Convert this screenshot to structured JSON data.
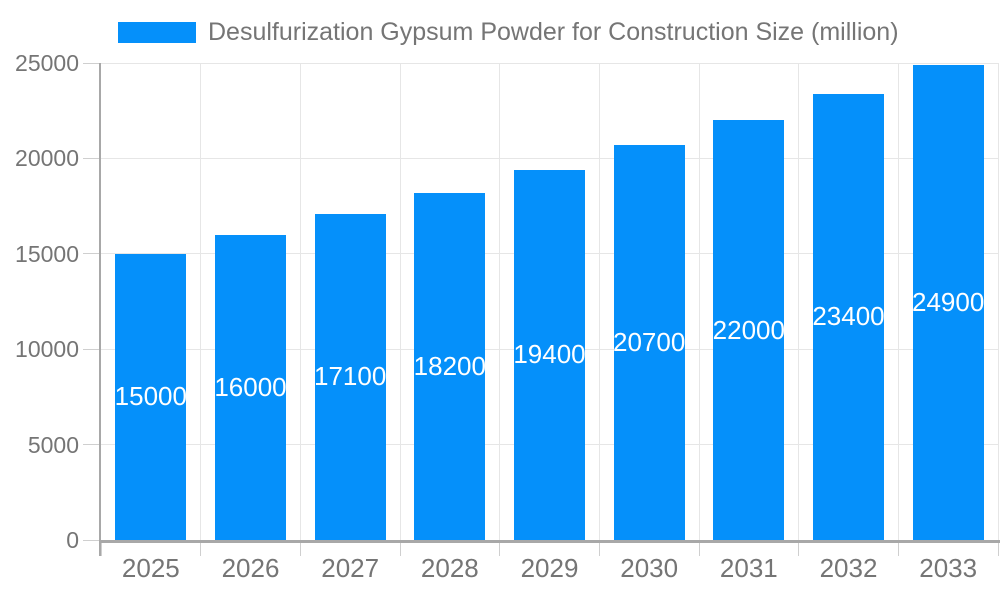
{
  "chart_data": {
    "type": "bar",
    "title": "Desulfurization Gypsum Powder for Construction Size (million)",
    "categories": [
      "2025",
      "2026",
      "2027",
      "2028",
      "2029",
      "2030",
      "2031",
      "2032",
      "2033"
    ],
    "values": [
      15000,
      16000,
      17100,
      18200,
      19400,
      20700,
      22000,
      23400,
      24900
    ],
    "xlabel": "",
    "ylabel": "",
    "ylim": [
      0,
      25000
    ],
    "yticks": [
      0,
      5000,
      10000,
      15000,
      20000,
      25000
    ],
    "grid": true,
    "legend_position": "top-left",
    "value_labels_position": "inside-center",
    "bar_color": "#0590fa",
    "value_label_color": "#ffffff"
  },
  "style": {
    "accent_color": "#0590fa",
    "grid_color": "#e6e6e6",
    "axis_color": "#a8a8a8",
    "tick_color": "#cfcfcf",
    "label_color": "#757575",
    "background": "#ffffff"
  }
}
